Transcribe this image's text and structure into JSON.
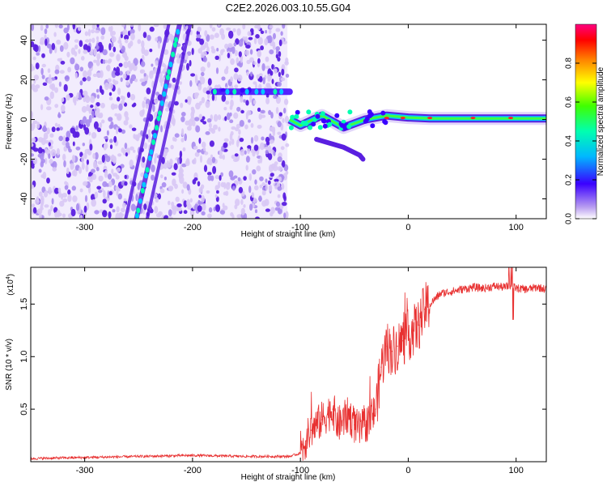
{
  "title": "C2E2.2026.003.10.55.G04",
  "colors": {
    "noise_light": "#d8c8f5",
    "noise_dark": "#5a1fe0",
    "snr_line": "#e83030",
    "axis": "#000000"
  },
  "chart_data": [
    {
      "type": "heatmap",
      "name": "spectrogram",
      "xlabel": "Height of straight line (km)",
      "ylabel": "Frequency (Hz)",
      "xlim": [
        -350,
        128
      ],
      "ylim": [
        -50,
        48
      ],
      "x_ticks": [
        -300,
        -200,
        -100,
        0,
        100
      ],
      "y_ticks": [
        -40,
        -20,
        0,
        20,
        40
      ],
      "noise_region_x": [
        -350,
        -112
      ],
      "features": [
        {
          "name": "diagonal-streak-1",
          "x": [
            -262,
            -222
          ],
          "y": [
            -50,
            48
          ]
        },
        {
          "name": "diagonal-streak-2",
          "x": [
            -252,
            -212
          ],
          "y": [
            -50,
            48
          ]
        },
        {
          "name": "diagonal-streak-3",
          "x": [
            -242,
            -202
          ],
          "y": [
            -50,
            48
          ]
        },
        {
          "name": "hump-line-14hz",
          "x": [
            -180,
            -110
          ],
          "y": [
            14,
            14
          ]
        },
        {
          "name": "main-carrier",
          "points": [
            [
              -110,
              0
            ],
            [
              -100,
              -3
            ],
            [
              -80,
              2
            ],
            [
              -60,
              -4
            ],
            [
              -40,
              0
            ],
            [
              -20,
              2
            ],
            [
              0,
              1
            ],
            [
              20,
              0.5
            ],
            [
              128,
              0.5
            ]
          ]
        },
        {
          "name": "lower-branch",
          "points": [
            [
              -85,
              -10
            ],
            [
              -60,
              -14
            ],
            [
              -45,
              -18
            ],
            [
              -42,
              -20
            ]
          ]
        }
      ],
      "colorbar": {
        "label": "Normalized spectral amplitude",
        "range": [
          0,
          1
        ],
        "ticks": [
          0.0,
          0.2,
          0.4,
          0.6,
          0.8
        ],
        "colormap": [
          "#b89cf0",
          "#3a00ff",
          "#00b8ff",
          "#00ffb0",
          "#40ff00",
          "#ffff00",
          "#ff8000",
          "#ff0000",
          "#ff0080"
        ]
      }
    },
    {
      "type": "line",
      "name": "snr",
      "xlabel": "Height of straight line (km)",
      "ylabel": "SNR (10 * v/v)",
      "multiplier": "(x10",
      "multiplier_exp": "4",
      "multiplier_close": ")",
      "xlim": [
        -350,
        128
      ],
      "ylim": [
        0,
        1.85
      ],
      "x_ticks": [
        -300,
        -200,
        -100,
        0,
        100
      ],
      "y_ticks": [
        0.5,
        1.0,
        1.5
      ],
      "y_tick_labels": [
        "0.5",
        "1.0",
        "1.5"
      ],
      "series": [
        {
          "name": "SNR",
          "x": [
            -350,
            -300,
            -250,
            -200,
            -150,
            -110,
            -100,
            -95,
            -90,
            -85,
            -80,
            -75,
            -70,
            -65,
            -60,
            -55,
            -50,
            -45,
            -40,
            -35,
            -30,
            -25,
            -20,
            -15,
            -10,
            -5,
            0,
            5,
            10,
            15,
            20,
            25,
            30,
            40,
            50,
            60,
            70,
            80,
            90,
            95,
            100,
            110,
            120,
            128
          ],
          "y": [
            0.03,
            0.04,
            0.05,
            0.06,
            0.05,
            0.05,
            0.08,
            0.2,
            0.3,
            0.35,
            0.4,
            0.45,
            0.5,
            0.35,
            0.4,
            0.45,
            0.35,
            0.3,
            0.35,
            0.4,
            0.5,
            0.9,
            1.1,
            1.05,
            1.1,
            1.15,
            1.2,
            1.25,
            1.3,
            1.45,
            1.5,
            1.55,
            1.6,
            1.62,
            1.64,
            1.66,
            1.65,
            1.67,
            1.66,
            1.68,
            1.65,
            1.64,
            1.66,
            1.64
          ]
        }
      ]
    }
  ]
}
